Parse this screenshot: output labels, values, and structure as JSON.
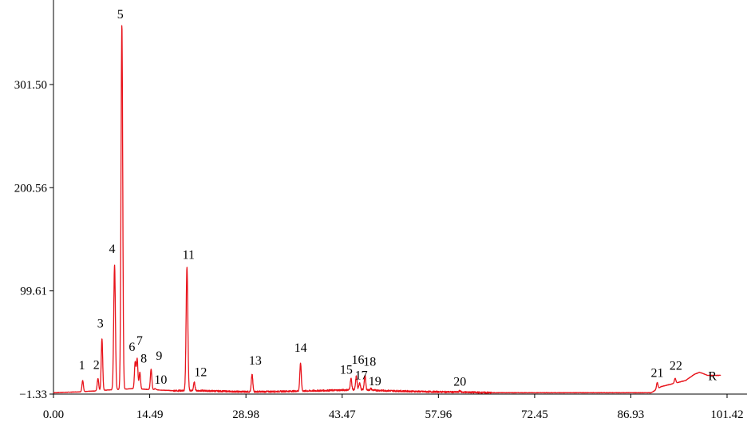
{
  "chart_data": {
    "type": "line",
    "xlim": [
      0.0,
      101.42
    ],
    "ylim": [
      -1.33,
      370
    ],
    "x_ticks": [
      {
        "value": 0.0,
        "label": "0.00"
      },
      {
        "value": 14.49,
        "label": "14.49"
      },
      {
        "value": 28.98,
        "label": "28.98"
      },
      {
        "value": 43.47,
        "label": "43.47"
      },
      {
        "value": 57.96,
        "label": "57.96"
      },
      {
        "value": 72.45,
        "label": "72.45"
      },
      {
        "value": 86.93,
        "label": "86.93"
      },
      {
        "value": 101.42,
        "label": "101.42"
      }
    ],
    "y_ticks": [
      {
        "value": -1.33,
        "label": "-1.33"
      },
      {
        "value": 99.61,
        "label": "99.61"
      },
      {
        "value": 200.56,
        "label": "200.56"
      },
      {
        "value": 301.5,
        "label": "301.50"
      }
    ],
    "line_color": "#e8141c",
    "baseline": [
      [
        0.0,
        0.0
      ],
      [
        4.5,
        1.0
      ],
      [
        9.0,
        3.0
      ],
      [
        12.0,
        4.0
      ],
      [
        18.0,
        2.0
      ],
      [
        22.0,
        2.0
      ],
      [
        28.0,
        1.0
      ],
      [
        32.0,
        1.0
      ],
      [
        40.0,
        2.0
      ],
      [
        46.0,
        3.0
      ],
      [
        50.0,
        2.0
      ],
      [
        56.0,
        1.0
      ],
      [
        62.0,
        0.5
      ],
      [
        66.0,
        0.0
      ],
      [
        90.0,
        0.0
      ],
      [
        91.5,
        6.0
      ],
      [
        94.0,
        10.0
      ],
      [
        95.2,
        12.0
      ],
      [
        96.5,
        18.0
      ],
      [
        97.3,
        20.0
      ],
      [
        98.5,
        17.0
      ],
      [
        100.5,
        17.0
      ]
    ],
    "peaks": [
      {
        "label": "1",
        "x": 4.4,
        "y": 12
      },
      {
        "label": "2",
        "x": 6.7,
        "y": 14
      },
      {
        "label": "3",
        "x": 7.3,
        "y": 53
      },
      {
        "label": "4",
        "x": 9.2,
        "y": 125
      },
      {
        "label": "5",
        "x": 10.3,
        "y": 360
      },
      {
        "label": "6",
        "x": 12.3,
        "y": 30
      },
      {
        "label": "7",
        "x": 12.6,
        "y": 33
      },
      {
        "label": "8",
        "x": 13.0,
        "y": 20
      },
      {
        "label": "9",
        "x": 14.7,
        "y": 23
      },
      {
        "label": "10",
        "x": 15.3,
        "y": 4
      },
      {
        "label": "11",
        "x": 20.1,
        "y": 123
      },
      {
        "label": "12",
        "x": 21.2,
        "y": 10
      },
      {
        "label": "13",
        "x": 29.9,
        "y": 18
      },
      {
        "label": "14",
        "x": 37.2,
        "y": 29
      },
      {
        "label": "15",
        "x": 44.8,
        "y": 14
      },
      {
        "label": "16",
        "x": 45.6,
        "y": 16
      },
      {
        "label": "17",
        "x": 46.1,
        "y": 10
      },
      {
        "label": "18",
        "x": 46.9,
        "y": 17
      },
      {
        "label": "19",
        "x": 47.8,
        "y": 4
      },
      {
        "label": "20",
        "x": 61.2,
        "y": 2
      },
      {
        "label": "21",
        "x": 90.9,
        "y": 10
      },
      {
        "label": "22",
        "x": 93.6,
        "y": 14
      }
    ],
    "end_label": "R"
  }
}
